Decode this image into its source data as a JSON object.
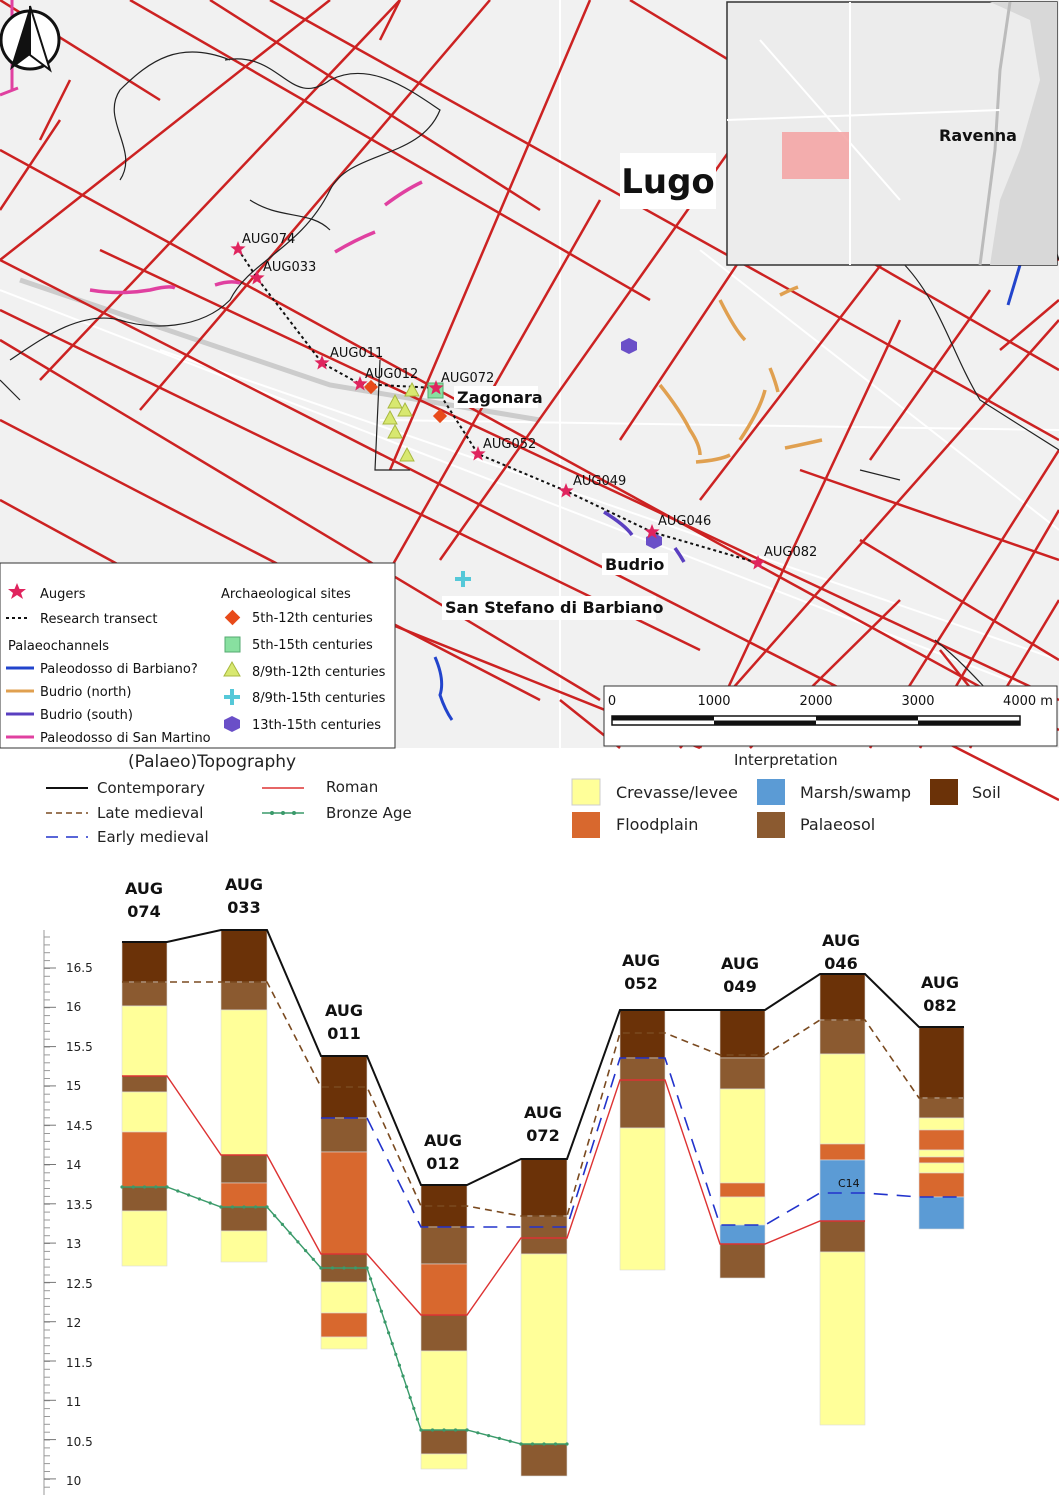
{
  "map": {
    "town_labels": {
      "lugo": "Lugo",
      "ravenna": "Ravenna",
      "zagonara": "Zagonara",
      "budrio": "Budrio",
      "san_stefano": "San Stefano di Barbiano"
    },
    "augers": [
      {
        "id": "AUG074"
      },
      {
        "id": "AUG033"
      },
      {
        "id": "AUG011"
      },
      {
        "id": "AUG012"
      },
      {
        "id": "AUG072"
      },
      {
        "id": "AUG052"
      },
      {
        "id": "AUG049"
      },
      {
        "id": "AUG046"
      },
      {
        "id": "AUG082"
      }
    ],
    "legend": {
      "augers": "Augers",
      "transect": "Research transect",
      "palaeochannels_title": "Palaeochannels",
      "channels": [
        "Paleodosso di Barbiano?",
        "Budrio (north)",
        "Budrio (south)",
        "Paleodosso di San Martino"
      ],
      "sites_title": "Archaeological sites",
      "sites": [
        "5th-12th centuries",
        "5th-15th centuries",
        "8/9th-12th centuries",
        "8/9th-15th centuries",
        "13th-15th centuries"
      ]
    },
    "scale": {
      "ticks": [
        "0",
        "1000",
        "2000",
        "3000",
        "4000 m"
      ]
    },
    "colors": {
      "road_grid": "#cc2222",
      "budrio_north": "#e0a050",
      "budrio_south": "#5a3fc0",
      "barbiano": "#2244cc",
      "san_martino": "#e040a0",
      "site_5_12": "#e84a1a",
      "site_5_15": "#88e0a0",
      "site_8_12": "#d8e870",
      "site_8_15": "#55c8d8",
      "site_13_15": "#6a4fc8"
    }
  },
  "section": {
    "topography_title": "(Palaeo)Topography",
    "topography_items": [
      "Contemporary",
      "Late medieval",
      "Early medieval",
      "Roman",
      "Bronze Age"
    ],
    "interpretation_title": "Interpretation",
    "interpretation_items": [
      "Crevasse/levee",
      "Marsh/swamp",
      "Soil",
      "Floodplain",
      "Palaeosol"
    ],
    "colors": {
      "crevasse": "#ffff99",
      "marsh": "#5b9bd5",
      "soil": "#6b3208",
      "floodplain": "#d8682e",
      "palaeosol": "#8b5a30"
    },
    "y_ticks": [
      "16.5",
      "16",
      "15.5",
      "15",
      "14.5",
      "14",
      "13.5",
      "13",
      "12.5",
      "12",
      "11.5",
      "11",
      "10.5",
      "10"
    ],
    "columns": [
      {
        "top": "AUG",
        "bottom": "074"
      },
      {
        "top": "AUG",
        "bottom": "033"
      },
      {
        "top": "AUG",
        "bottom": "011"
      },
      {
        "top": "AUG",
        "bottom": "012"
      },
      {
        "top": "AUG",
        "bottom": "072"
      },
      {
        "top": "AUG",
        "bottom": "052"
      },
      {
        "top": "AUG",
        "bottom": "049"
      },
      {
        "top": "AUG",
        "bottom": "046"
      },
      {
        "top": "AUG",
        "bottom": "082"
      }
    ],
    "c14_label": "C14"
  }
}
